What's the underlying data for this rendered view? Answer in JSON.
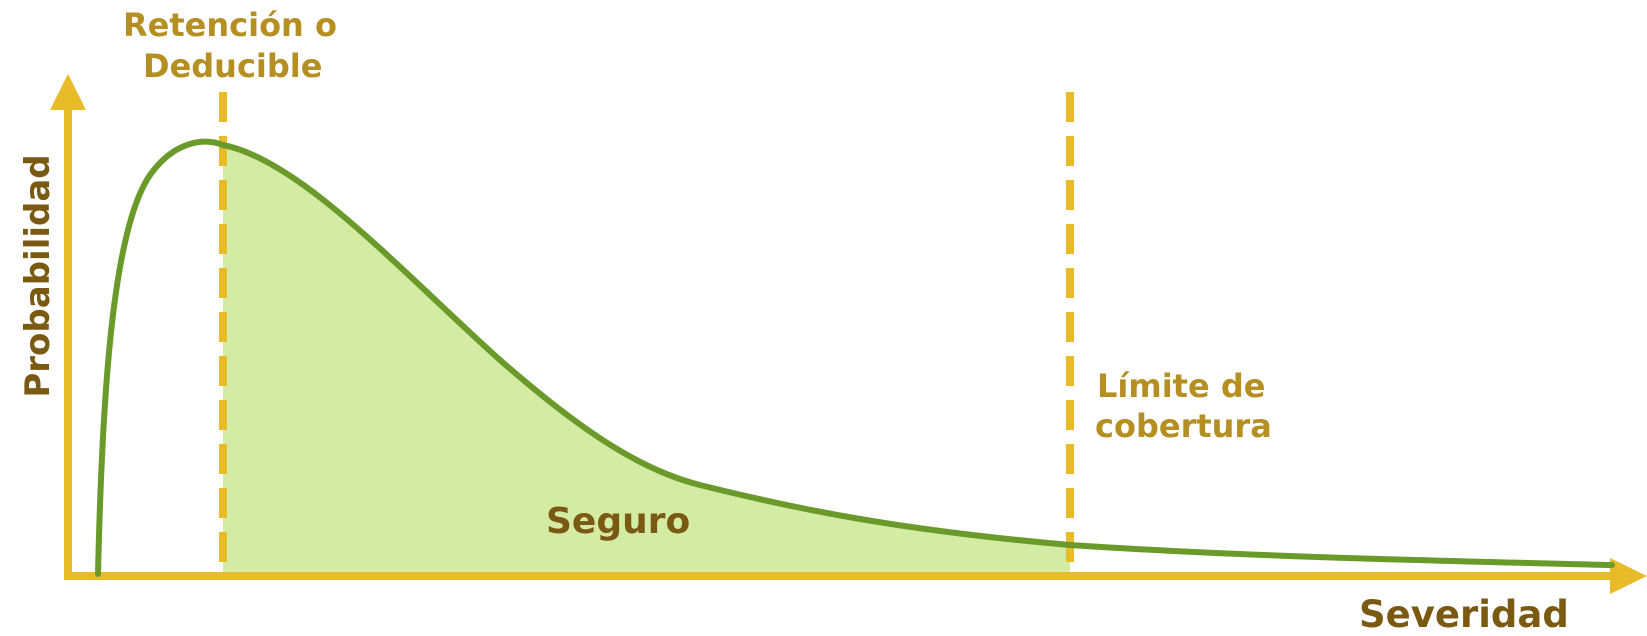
{
  "diagram": {
    "axes": {
      "y_label": "Probabilidad",
      "x_label": "Severidad",
      "color": "#E8BC28"
    },
    "markers": {
      "retention_line1": "Retención o",
      "retention_line2": "Deducible",
      "limit_line1": "Límite de",
      "limit_line2": "cobertura"
    },
    "region_label": "Seguro",
    "colors": {
      "curve": "#6A9A2A",
      "shaded_area": "#D4EBA4",
      "marker_line": "#E8BC28",
      "label_gold": "#B68F22",
      "label_brown": "#7A5A12"
    }
  }
}
